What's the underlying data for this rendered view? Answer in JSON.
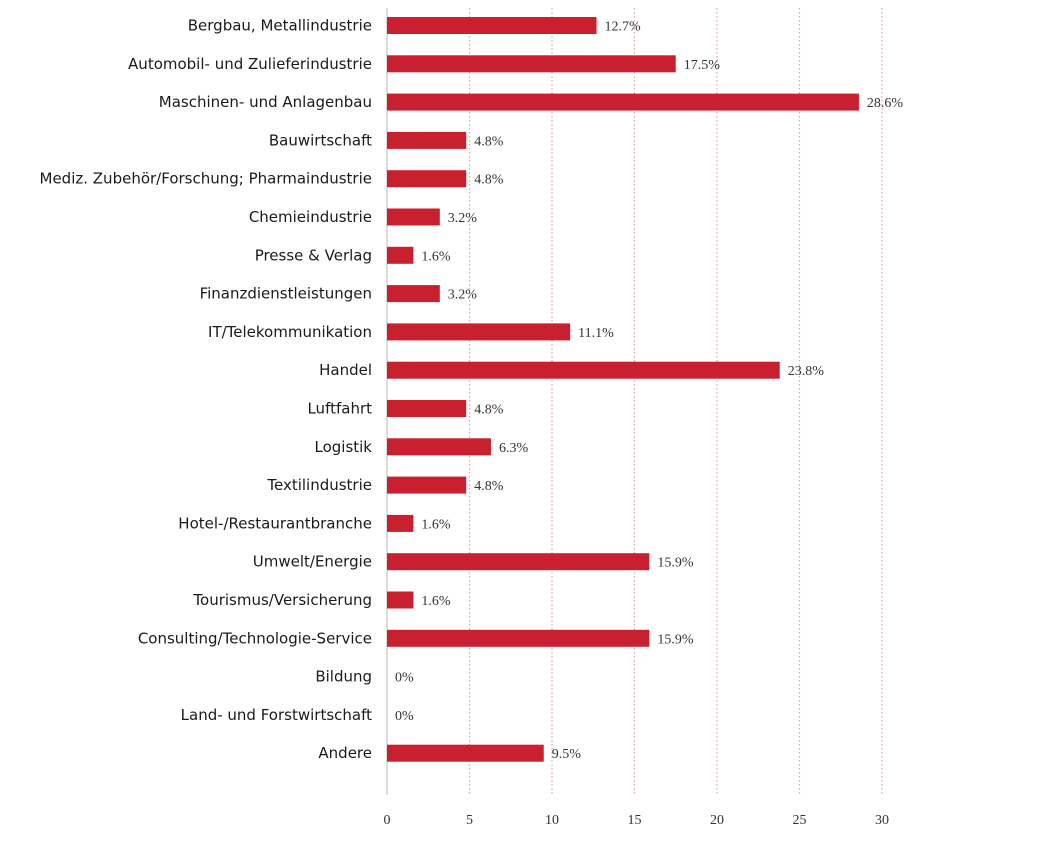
{
  "chart_data": {
    "type": "bar",
    "orientation": "horizontal",
    "title": "",
    "xlabel": "",
    "ylabel": "",
    "xlim": [
      0,
      30
    ],
    "xticks": [
      0,
      5,
      10,
      15,
      20,
      25,
      30
    ],
    "grid": "vertical dotted",
    "bar_color": "#c8202e",
    "grid_color": "#d9a7a7",
    "categories": [
      "Bergbau, Metallindustrie",
      "Automobil- und Zulieferindustrie",
      "Maschinen- und Anlagenbau",
      "Bauwirtschaft",
      "Mediz. Zubehör/Forschung; Pharmaindustrie",
      "Chemieindustrie",
      "Presse & Verlag",
      "Finanzdienstleistungen",
      "IT/Telekommunikation",
      "Handel",
      "Luftfahrt",
      "Logistik",
      "Textilindustrie",
      "Hotel-/Restaurantbranche",
      "Umwelt/Energie",
      "Tourismus/Versicherung",
      "Consulting/Technologie-Service",
      "Bildung",
      "Land- und Forstwirtschaft",
      "Andere"
    ],
    "values": [
      12.7,
      17.5,
      28.6,
      4.8,
      4.8,
      3.2,
      1.6,
      3.2,
      11.1,
      23.8,
      4.8,
      6.3,
      4.8,
      1.6,
      15.9,
      1.6,
      15.9,
      0,
      0,
      9.5
    ],
    "value_labels": [
      "12.7%",
      "17.5%",
      "28.6%",
      "4.8%",
      "4.8%",
      "3.2%",
      "1.6%",
      "3.2%",
      "11.1%",
      "23.8%",
      "4.8%",
      "6.3%",
      "4.8%",
      "1.6%",
      "15.9%",
      "1.6%",
      "15.9%",
      "0%",
      "0%",
      "9.5%"
    ]
  }
}
